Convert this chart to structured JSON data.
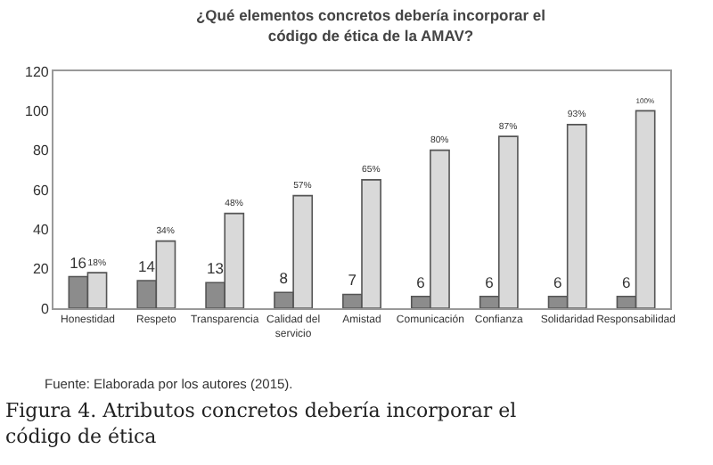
{
  "chart_data": {
    "type": "bar",
    "title": "¿Qué elementos concretos debería incorporar el código de ética de la AMAV?",
    "categories": [
      "Honestidad",
      "Respeto",
      "Transparencia",
      "Calidad del servicio",
      "Amistad",
      "Comunicación",
      "Confianza",
      "Solidaridad",
      "Responsabilidad"
    ],
    "series": [
      {
        "color": "#8c8c8c",
        "values": [
          16,
          14,
          13,
          8,
          7,
          6,
          6,
          6,
          6
        ],
        "value_labels": [
          "16",
          "14",
          "13",
          "8",
          "7",
          "6",
          "6",
          "6",
          "6"
        ]
      },
      {
        "color": "#d9d9d9",
        "values": [
          18,
          34,
          48,
          57,
          65,
          80,
          87,
          93,
          100
        ],
        "value_labels": [
          "18%",
          "34%",
          "48%",
          "57%",
          "65%",
          "80%",
          "87%",
          "93%",
          "100%"
        ]
      }
    ],
    "ylim": [
      0,
      120
    ],
    "yticks": [
      0,
      20,
      40,
      60,
      80,
      100,
      120
    ],
    "grid": false,
    "annotations": [
      "Fuente: Elaborada por los autores (2015).",
      "Figura 4. Atributos concretos debería incorporar el código de ética"
    ]
  }
}
